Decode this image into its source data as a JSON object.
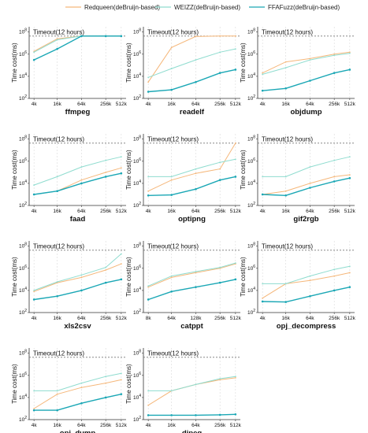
{
  "legend": [
    {
      "label": "Redqueen(deBruijn-based)",
      "color": "#f5b77a",
      "dash": "solid"
    },
    {
      "label": "WEIZZ(deBruijn-based)",
      "color": "#8fdccf",
      "dash": "solid"
    },
    {
      "label": "FFAFuzz(deBruijn-based)",
      "color": "#1aa7b5",
      "dash": "solid"
    }
  ],
  "ylabel": "Time cost(ms)",
  "timeout_label": "Timeout(12 hours)",
  "chart_data": [
    {
      "type": "line",
      "title": "ffmpeg",
      "x_ticks": [
        "4k",
        "16k",
        "64k",
        "256k",
        "512k"
      ],
      "y_ticks": [
        "10^2",
        "10^4",
        "10^6",
        "10^8"
      ],
      "ylim": [
        100,
        300000000
      ],
      "y_scale": "log",
      "series": [
        {
          "name": "Redqueen(deBruijn-based)",
          "values": [
            1800000,
            25000000,
            43200000,
            43200000,
            43200000
          ]
        },
        {
          "name": "WEIZZ(deBruijn-based)",
          "values": [
            1500000,
            20000000,
            43200000,
            43200000,
            43200000
          ]
        },
        {
          "name": "FFAFuzz(deBruijn-based)",
          "values": [
            300000,
            3000000,
            43200000,
            43200000,
            43200000
          ]
        }
      ]
    },
    {
      "type": "line",
      "title": "readelf",
      "x_ticks": [
        "4k",
        "16k",
        "64k",
        "256k",
        "512k"
      ],
      "y_ticks": [
        "10^2",
        "10^4",
        "10^6",
        "10^8"
      ],
      "ylim": [
        100,
        300000000
      ],
      "y_scale": "log",
      "series": [
        {
          "name": "Redqueen(deBruijn-based)",
          "values": [
            3000,
            4000000,
            40000000,
            43200000,
            43200000
          ]
        },
        {
          "name": "WEIZZ(deBruijn-based)",
          "values": [
            8000,
            50000,
            300000,
            1500000,
            3000000
          ]
        },
        {
          "name": "FFAFuzz(deBruijn-based)",
          "values": [
            400,
            600,
            3000,
            20000,
            40000
          ]
        }
      ]
    },
    {
      "type": "line",
      "title": "objdump",
      "x_ticks": [
        "4k",
        "16k",
        "64k",
        "256k",
        "512k"
      ],
      "y_ticks": [
        "10^2",
        "10^4",
        "10^6",
        "10^8"
      ],
      "ylim": [
        100,
        300000000
      ],
      "y_scale": "log",
      "series": [
        {
          "name": "Redqueen(deBruijn-based)",
          "values": [
            20000,
            200000,
            400000,
            1000000,
            1500000
          ]
        },
        {
          "name": "WEIZZ(deBruijn-based)",
          "values": [
            15000,
            60000,
            300000,
            800000,
            1200000
          ]
        },
        {
          "name": "FFAFuzz(deBruijn-based)",
          "values": [
            500,
            800,
            4000,
            20000,
            40000
          ]
        }
      ]
    },
    {
      "type": "line",
      "title": "faad",
      "x_ticks": [
        "4k",
        "16k",
        "64k",
        "256k",
        "512k"
      ],
      "y_ticks": [
        "10^2",
        "10^4",
        "10^6",
        "10^8"
      ],
      "ylim": [
        100,
        300000000
      ],
      "y_scale": "log",
      "series": [
        {
          "name": "Redqueen(deBruijn-based)",
          "values": [
            1000,
            2000,
            20000,
            100000,
            250000
          ]
        },
        {
          "name": "WEIZZ(deBruijn-based)",
          "values": [
            7000,
            40000,
            300000,
            1200000,
            2500000
          ]
        },
        {
          "name": "FFAFuzz(deBruijn-based)",
          "values": [
            1000,
            2000,
            10000,
            40000,
            80000
          ]
        }
      ]
    },
    {
      "type": "line",
      "title": "optipng",
      "x_ticks": [
        "4k",
        "16k",
        "64k",
        "256k",
        "512k"
      ],
      "y_ticks": [
        "10^2",
        "10^4",
        "10^6",
        "10^8"
      ],
      "ylim": [
        100,
        300000000
      ],
      "y_scale": "log",
      "series": [
        {
          "name": "Redqueen(deBruijn-based)",
          "values": [
            2000,
            20000,
            80000,
            200000,
            43200000
          ]
        },
        {
          "name": "WEIZZ(deBruijn-based)",
          "values": [
            40000,
            40000,
            200000,
            800000,
            1500000
          ]
        },
        {
          "name": "FFAFuzz(deBruijn-based)",
          "values": [
            800,
            900,
            3000,
            20000,
            40000
          ]
        }
      ]
    },
    {
      "type": "line",
      "title": "gif2rgb",
      "x_ticks": [
        "4k",
        "16k",
        "64k",
        "256k",
        "512k"
      ],
      "y_ticks": [
        "10^2",
        "10^4",
        "10^6",
        "10^8"
      ],
      "ylim": [
        100,
        300000000
      ],
      "y_scale": "log",
      "series": [
        {
          "name": "Redqueen(deBruijn-based)",
          "values": [
            1000,
            2000,
            10000,
            40000,
            60000
          ]
        },
        {
          "name": "WEIZZ(deBruijn-based)",
          "values": [
            40000,
            40000,
            300000,
            1200000,
            2500000
          ]
        },
        {
          "name": "FFAFuzz(deBruijn-based)",
          "values": [
            1000,
            800,
            4000,
            15000,
            30000
          ]
        }
      ]
    },
    {
      "type": "line",
      "title": "xls2csv",
      "x_ticks": [
        "4k",
        "16k",
        "64k",
        "256k",
        "512k"
      ],
      "y_ticks": [
        "10^2",
        "10^4",
        "10^6",
        "10^8"
      ],
      "ylim": [
        100,
        300000000
      ],
      "y_scale": "log",
      "series": [
        {
          "name": "Redqueen(deBruijn-based)",
          "values": [
            8000,
            50000,
            150000,
            700000,
            2500000
          ]
        },
        {
          "name": "WEIZZ(deBruijn-based)",
          "values": [
            10000,
            60000,
            250000,
            1200000,
            20000000
          ]
        },
        {
          "name": "FFAFuzz(deBruijn-based)",
          "values": [
            1500,
            3000,
            10000,
            50000,
            100000
          ]
        }
      ]
    },
    {
      "type": "line",
      "title": "catppt",
      "x_ticks": [
        "8k",
        "64k",
        "128k",
        "256k",
        "512k"
      ],
      "y_ticks": [
        "10^2",
        "10^4",
        "10^6",
        "10^8"
      ],
      "ylim": [
        100,
        300000000
      ],
      "y_scale": "log",
      "series": [
        {
          "name": "Redqueen(deBruijn-based)",
          "values": [
            20000,
            150000,
            400000,
            1000000,
            2500000
          ]
        },
        {
          "name": "WEIZZ(deBruijn-based)",
          "values": [
            25000,
            200000,
            500000,
            1200000,
            3000000
          ]
        },
        {
          "name": "FFAFuzz(deBruijn-based)",
          "values": [
            1500,
            8000,
            20000,
            50000,
            100000
          ]
        }
      ]
    },
    {
      "type": "line",
      "title": "opj_decompress",
      "x_ticks": [
        "4k",
        "16k",
        "64k",
        "256k",
        "512k"
      ],
      "y_ticks": [
        "10^2",
        "10^4",
        "10^6",
        "10^8"
      ],
      "ylim": [
        100,
        300000000
      ],
      "y_scale": "log",
      "series": [
        {
          "name": "Redqueen(deBruijn-based)",
          "values": [
            2000,
            40000,
            80000,
            200000,
            400000
          ]
        },
        {
          "name": "WEIZZ(deBruijn-based)",
          "values": [
            40000,
            40000,
            200000,
            800000,
            1500000
          ]
        },
        {
          "name": "FFAFuzz(deBruijn-based)",
          "values": [
            1000,
            900,
            3000,
            10000,
            20000
          ]
        }
      ]
    },
    {
      "type": "line",
      "title": "opj_dump",
      "x_ticks": [
        "4k",
        "16k",
        "64k",
        "256k",
        "512k"
      ],
      "y_ticks": [
        "10^2",
        "10^4",
        "10^6",
        "10^8"
      ],
      "ylim": [
        100,
        300000000
      ],
      "y_scale": "log",
      "series": [
        {
          "name": "Redqueen(deBruijn-based)",
          "values": [
            1000,
            20000,
            80000,
            200000,
            400000
          ]
        },
        {
          "name": "WEIZZ(deBruijn-based)",
          "values": [
            40000,
            40000,
            200000,
            800000,
            1500000
          ]
        },
        {
          "name": "FFAFuzz(deBruijn-based)",
          "values": [
            700,
            700,
            3000,
            10000,
            20000
          ]
        }
      ]
    },
    {
      "type": "line",
      "title": "djpeg",
      "x_ticks": [
        "4k",
        "16k",
        "64k",
        "256k",
        "512k"
      ],
      "y_ticks": [
        "10^2",
        "10^4",
        "10^6",
        "10^8"
      ],
      "ylim": [
        100,
        300000000
      ],
      "y_scale": "log",
      "series": [
        {
          "name": "Redqueen(deBruijn-based)",
          "values": [
            2000,
            40000,
            150000,
            400000,
            600000
          ]
        },
        {
          "name": "WEIZZ(deBruijn-based)",
          "values": [
            40000,
            40000,
            150000,
            500000,
            800000
          ]
        },
        {
          "name": "FFAFuzz(deBruijn-based)",
          "values": [
            250,
            250,
            250,
            270,
            300
          ]
        }
      ]
    }
  ]
}
